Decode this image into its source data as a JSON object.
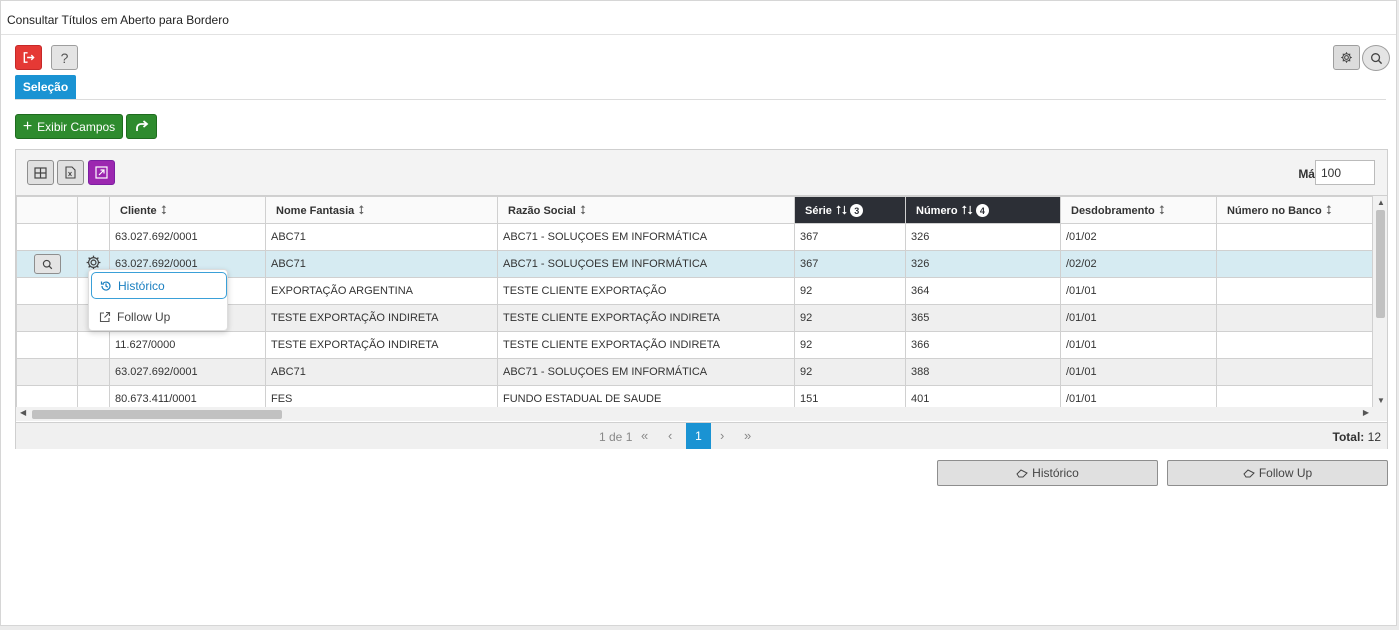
{
  "title": "Consultar Títulos em Aberto para Bordero",
  "toolbar": {
    "help_label": "?"
  },
  "tabs": [
    {
      "label": "Seleção"
    }
  ],
  "actions": {
    "exibir_campos_label": "Exibir Campos"
  },
  "grid": {
    "max_label": "Máx.",
    "max_value": "100",
    "columns": [
      {
        "label": "Cliente",
        "sort": "⭥"
      },
      {
        "label": "Nome Fantasia",
        "sort": "⭥"
      },
      {
        "label": "Razão Social",
        "sort": "⭥"
      },
      {
        "label": "Série",
        "sort": "⭡⭣",
        "badge": "3"
      },
      {
        "label": "Número",
        "sort": "⭡⭣",
        "badge": "4"
      },
      {
        "label": "Desdobramento",
        "sort": "⭥"
      },
      {
        "label": "Número no Banco",
        "sort": "⭥"
      }
    ],
    "rows": [
      {
        "cliente": "63.027.692/0001",
        "fantasia": "ABC71",
        "razao": "ABC71 - SOLUÇOES EM INFORMÁTICA",
        "serie": "367",
        "numero": "326",
        "desdob": "/01/02",
        "banco": ""
      },
      {
        "cliente": "63.027.692/0001",
        "fantasia": "ABC71",
        "razao": "ABC71 - SOLUÇOES EM INFORMÁTICA",
        "serie": "367",
        "numero": "326",
        "desdob": "/02/02",
        "banco": ""
      },
      {
        "cliente": "",
        "fantasia": "EXPORTAÇÃO ARGENTINA",
        "razao": "TESTE CLIENTE EXPORTAÇÃO",
        "serie": "92",
        "numero": "364",
        "desdob": "/01/01",
        "banco": ""
      },
      {
        "cliente": "",
        "fantasia": "TESTE EXPORTAÇÃO INDIRETA",
        "razao": "TESTE CLIENTE EXPORTAÇÃO INDIRETA",
        "serie": "92",
        "numero": "365",
        "desdob": "/01/01",
        "banco": ""
      },
      {
        "cliente": "11.627/0000",
        "fantasia": "TESTE EXPORTAÇÃO INDIRETA",
        "razao": "TESTE CLIENTE EXPORTAÇÃO INDIRETA",
        "serie": "92",
        "numero": "366",
        "desdob": "/01/01",
        "banco": ""
      },
      {
        "cliente": "63.027.692/0001",
        "fantasia": "ABC71",
        "razao": "ABC71 - SOLUÇOES EM INFORMÁTICA",
        "serie": "92",
        "numero": "388",
        "desdob": "/01/01",
        "banco": ""
      },
      {
        "cliente": "80.673.411/0001",
        "fantasia": "FES",
        "razao": "FUNDO ESTADUAL DE SAUDE",
        "serie": "151",
        "numero": "401",
        "desdob": "/01/01",
        "banco": ""
      }
    ]
  },
  "context_menu": {
    "items": [
      {
        "label": "Histórico"
      },
      {
        "label": "Follow Up"
      }
    ]
  },
  "pager": {
    "info": "1 de 1",
    "current": "1",
    "total_label": "Total:",
    "total_value": "12"
  },
  "bottom_buttons": {
    "historico": "Histórico",
    "follow_up": "Follow Up"
  },
  "colors": {
    "accent": "#1a93d3",
    "green": "#2e8b2e",
    "red": "#e53935",
    "purple": "#9c27b0",
    "dark_header": "#2c2f36",
    "selected_row": "#d6ebf2"
  }
}
